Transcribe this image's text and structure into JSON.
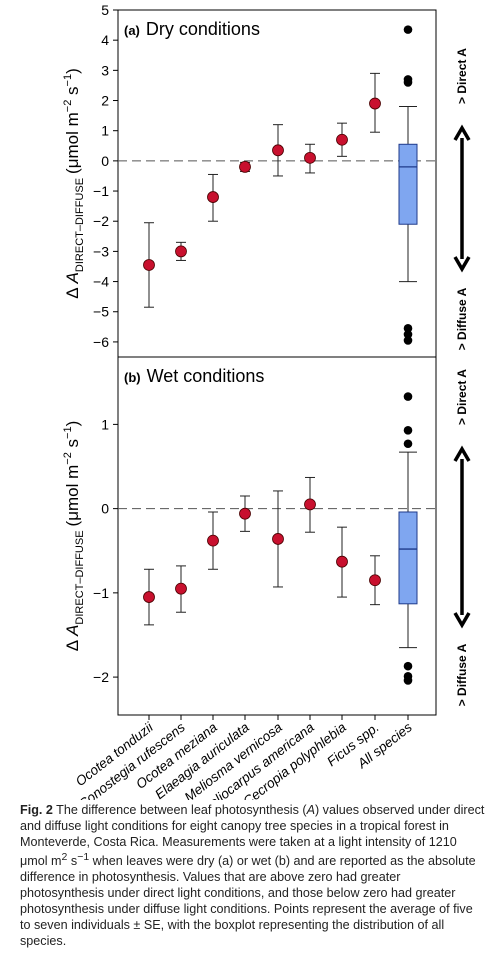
{
  "chart_data": [
    {
      "type": "scatter",
      "panel_label": "(a)",
      "title": "Dry conditions",
      "ylabel": "Δ A DIRECT-DIFFUSE (μmol m−2 s−1)",
      "ylabel_parts": {
        "delta": "Δ",
        "A": "A",
        "sub": "DIRECT–DIFFUSE",
        "unit_open": "(μmol m",
        "exp1": "−2",
        "unit_s": " s",
        "exp2": "−1",
        "unit_close": ")"
      },
      "ylim": [
        -6.5,
        5
      ],
      "yticks": [
        -6,
        -5,
        -4,
        -3,
        -2,
        -1,
        0,
        1,
        2,
        3,
        4,
        5
      ],
      "ytick_labels": [
        "−6",
        "−5",
        "−4",
        "−3",
        "−2",
        "−1",
        "0",
        "1",
        "2",
        "3",
        "4",
        "5"
      ],
      "reference_line": 0,
      "points": [
        {
          "category": "Ocotea tonduzii",
          "mean": -3.45,
          "se_low": -4.85,
          "se_high": -2.05
        },
        {
          "category": "Conostegia rufescens",
          "mean": -3.0,
          "se_low": -3.3,
          "se_high": -2.7
        },
        {
          "category": "Ocotea meziana",
          "mean": -1.2,
          "se_low": -2.0,
          "se_high": -0.45
        },
        {
          "category": "Elaeagia auriculata",
          "mean": -0.2,
          "se_low": -0.35,
          "se_high": -0.05
        },
        {
          "category": "Meliosma vernicosa",
          "mean": 0.35,
          "se_low": -0.5,
          "se_high": 1.2
        },
        {
          "category": "Heliocarpus americana",
          "mean": 0.1,
          "se_low": -0.4,
          "se_high": 0.55
        },
        {
          "category": "Cecropia polyphlebia",
          "mean": 0.7,
          "se_low": 0.15,
          "se_high": 1.25
        },
        {
          "category": "Ficus spp.",
          "mean": 1.9,
          "se_low": 0.95,
          "se_high": 2.9
        }
      ],
      "boxplot": {
        "category": "All species",
        "whisker_low": -4.0,
        "q1": -2.1,
        "median": -0.2,
        "q3": 0.55,
        "whisker_high": 1.8,
        "outliers": [
          4.35,
          2.7,
          2.6,
          -5.55,
          -5.75,
          -5.95
        ]
      },
      "annotations": {
        "direct": "> Direct A",
        "diffuse": "> Diffuse A"
      }
    },
    {
      "type": "scatter",
      "panel_label": "(b)",
      "title": "Wet conditions",
      "ylabel": "Δ A DIRECT-DIFFUSE (μmol m−2 s−1)",
      "ylabel_parts": {
        "delta": "Δ",
        "A": "A",
        "sub": "DIRECT–DIFFUSE",
        "unit_open": "(μmol m",
        "exp1": "−2",
        "unit_s": " s",
        "exp2": "−1",
        "unit_close": ")"
      },
      "ylim": [
        -2.45,
        1.8
      ],
      "yticks": [
        -2,
        -1,
        0,
        1
      ],
      "ytick_labels": [
        "−2",
        "−1",
        "0",
        "1"
      ],
      "reference_line": 0,
      "points": [
        {
          "category": "Ocotea tonduzii",
          "mean": -1.05,
          "se_low": -1.38,
          "se_high": -0.72
        },
        {
          "category": "Conostegia rufescens",
          "mean": -0.95,
          "se_low": -1.23,
          "se_high": -0.68
        },
        {
          "category": "Ocotea meziana",
          "mean": -0.38,
          "se_low": -0.72,
          "se_high": -0.04
        },
        {
          "category": "Elaeagia auriculata",
          "mean": -0.06,
          "se_low": -0.27,
          "se_high": 0.15
        },
        {
          "category": "Meliosma vernicosa",
          "mean": -0.36,
          "se_low": -0.93,
          "se_high": 0.21
        },
        {
          "category": "Heliocarpus americana",
          "mean": 0.05,
          "se_low": -0.28,
          "se_high": 0.37
        },
        {
          "category": "Cecropia polyphlebia",
          "mean": -0.63,
          "se_low": -1.05,
          "se_high": -0.22
        },
        {
          "category": "Ficus spp.",
          "mean": -0.85,
          "se_low": -1.14,
          "se_high": -0.56
        }
      ],
      "boxplot": {
        "category": "All species",
        "whisker_low": -1.65,
        "q1": -1.13,
        "median": -0.48,
        "q3": -0.04,
        "whisker_high": 0.67,
        "outliers": [
          1.33,
          0.93,
          0.77,
          -1.87,
          -1.99,
          -2.04
        ]
      },
      "annotations": {
        "direct": "> Direct A",
        "diffuse": "> Diffuse A"
      }
    }
  ],
  "x_categories": [
    "Ocotea tonduzii",
    "Conostegia rufescens",
    "Ocotea meziana",
    "Elaeagia auriculata",
    "Meliosma vernicosa",
    "Heliocarpus americana",
    "Cecropia polyphlebia",
    "Ficus spp.",
    "All species"
  ],
  "colors": {
    "point_fill": "#c8102e",
    "box_fill": "#7fa6f0",
    "box_stroke": "#1f3a8a",
    "outlier": "#000000",
    "dashed": "#555555"
  },
  "caption": {
    "label": "Fig. 2",
    "segments": [
      " The difference between leaf photosynthesis (",
      "A",
      ") values observed under direct and diffuse light conditions for eight canopy tree species in a tropical forest in Monteverde, Costa Rica. Measurements were taken at a light intensity of 1210 μmol m",
      "2",
      " s",
      "−1",
      " when leaves were dry (a) or wet (b) and are reported as the absolute difference in photosynthesis. Values that are above zero had greater photosynthesis under direct light conditions, and those below zero had greater photosynthesis under diffuse light conditions. Points represent the average of five to seven individuals ± SE, with the boxplot representing the distribution of all species."
    ]
  }
}
